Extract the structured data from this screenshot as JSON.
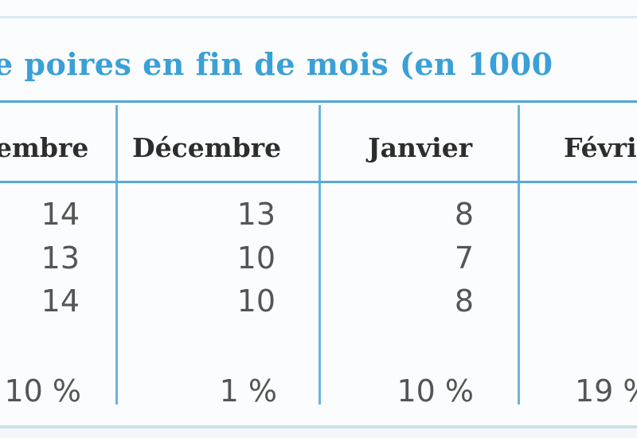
{
  "table": {
    "title": "e poires en fin de mois (en 1000",
    "headers": [
      "embre",
      "Décembre",
      "Janvier",
      "Févri"
    ],
    "rows": [
      [
        "14",
        "13",
        "8",
        ""
      ],
      [
        "13",
        "10",
        "7",
        ""
      ],
      [
        "14",
        "10",
        "8",
        ""
      ]
    ],
    "percent_row": [
      "10 %",
      "1 %",
      "10 %",
      "19 %"
    ]
  },
  "colors": {
    "title": "#3aa0d6",
    "rule": "#4fa7d8",
    "header_text": "#2d2d2d",
    "cell_text": "#555555"
  }
}
